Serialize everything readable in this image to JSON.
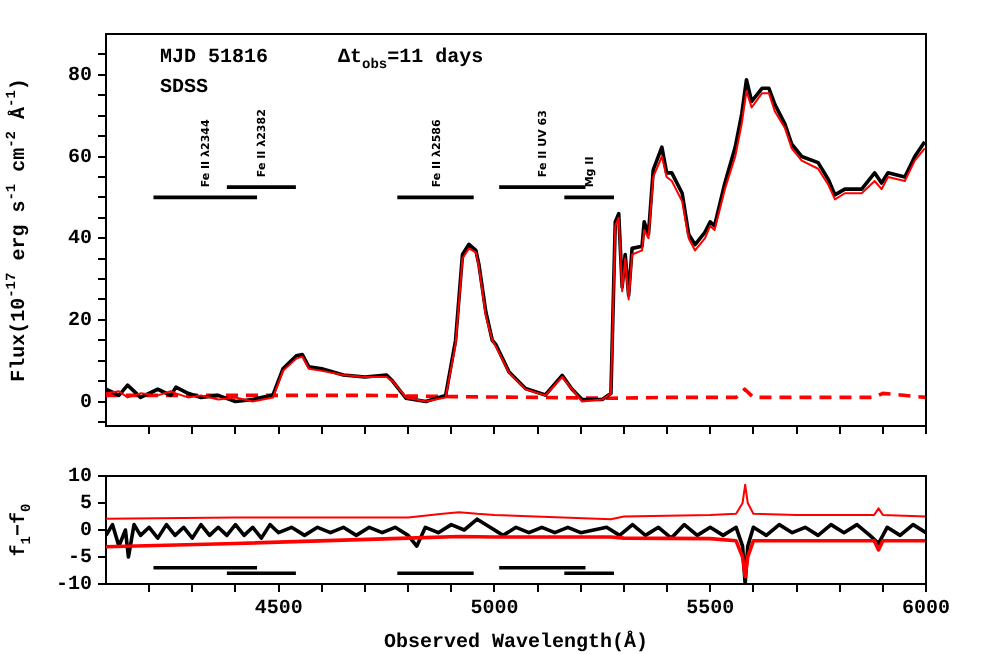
{
  "chart_data": [
    {
      "type": "line",
      "ylabel": "Flux(10$^{-17}$ erg s$^{-1}$ cm$^{-2}$ Å$^{-1}$)",
      "xlim": [
        4100,
        6000
      ],
      "xticks": [
        {
          "value": 4200,
          "label": null
        },
        {
          "value": 4300,
          "label": null
        },
        {
          "value": 4400,
          "label": null
        },
        4500,
        {
          "value": 4600,
          "label": null
        },
        {
          "value": 4700,
          "label": null
        },
        {
          "value": 4800,
          "label": null
        },
        {
          "value": 4900,
          "label": null
        },
        5000,
        {
          "value": 5100,
          "label": null
        },
        {
          "value": 5200,
          "label": null
        },
        {
          "value": 5300,
          "label": null
        },
        {
          "value": 5400,
          "label": null
        },
        5500,
        {
          "value": 5600,
          "label": null
        },
        {
          "value": 5700,
          "label": null
        },
        {
          "value": 5800,
          "label": null
        },
        {
          "value": 5900,
          "label": null
        },
        6000
      ],
      "ylim": [
        -6,
        90
      ],
      "yticks": [
        {
          "value": -5,
          "label": null
        },
        0,
        {
          "value": 5,
          "label": null
        },
        {
          "value": 10,
          "label": null
        },
        {
          "value": 15,
          "label": null
        },
        20,
        {
          "value": 25,
          "label": null
        },
        {
          "value": 30,
          "label": null
        },
        {
          "value": 35,
          "label": null
        },
        40,
        {
          "value": 45,
          "label": null
        },
        {
          "value": 50,
          "label": null
        },
        {
          "value": 55,
          "label": null
        },
        60,
        {
          "value": 65,
          "label": null
        },
        {
          "value": 70,
          "label": null
        },
        {
          "value": 75,
          "label": null
        },
        80,
        {
          "value": 85,
          "label": null
        }
      ],
      "tick_labels": "y",
      "grid": false,
      "legend": false,
      "marker": "none",
      "annotations": [
        "MJD 51816",
        "Δt$_{obs}$=11 days",
        "SDSS",
        "Fe II λ2344",
        "Fe II λ2382",
        "Fe II λ2586",
        "Fe II UV 63",
        "Mg II"
      ],
      "series": [
        {
          "color": "#ff0000",
          "x": [
            4100,
            4130,
            4150,
            4180,
            4220,
            4250,
            4262,
            4290,
            4320,
            4360,
            4400,
            4440,
            4487,
            4510,
            4541,
            4555,
            4570,
            4600,
            4650,
            4700,
            4750,
            4764,
            4795,
            4841,
            4887,
            4910,
            4926,
            4941,
            4957,
            4964,
            4980,
            4995,
            5003,
            5034,
            5072,
            5118,
            5157,
            5180,
            5203,
            5250,
            5270,
            5280,
            5288,
            5296,
            5303,
            5311,
            5319,
            5342,
            5347,
            5357,
            5368,
            5388,
            5399,
            5411,
            5435,
            5450,
            5465,
            5488,
            5500,
            5510,
            5534,
            5558,
            5573,
            5584,
            5596,
            5620,
            5636,
            5650,
            5673,
            5689,
            5712,
            5750,
            5774,
            5789,
            5812,
            5851,
            5881,
            5897,
            5912,
            5951,
            5974,
            5997
          ],
          "values": [
            2,
            2.5,
            1,
            2,
            1.5,
            2.5,
            2,
            1,
            1.5,
            0.5,
            1,
            0,
            1,
            7.5,
            10.5,
            11,
            8,
            7.5,
            6.5,
            6,
            6,
            5,
            1,
            0,
            1,
            14,
            35,
            37.5,
            36.5,
            33,
            21,
            15,
            13.5,
            7,
            3,
            1.5,
            6,
            3,
            0,
            0.5,
            2,
            43,
            45,
            27,
            35,
            25,
            36,
            37,
            42,
            40,
            55,
            60,
            55,
            54,
            49,
            40,
            37,
            40,
            43,
            42,
            52,
            60,
            68,
            76,
            72,
            75.5,
            75.5,
            71,
            67,
            62,
            59,
            57,
            53,
            49.5,
            51,
            51,
            54,
            52,
            55,
            54,
            59,
            62
          ]
        },
        {
          "color": "#000000",
          "x": [
            4100,
            4130,
            4150,
            4180,
            4220,
            4250,
            4262,
            4290,
            4320,
            4360,
            4400,
            4440,
            4487,
            4510,
            4541,
            4555,
            4570,
            4600,
            4650,
            4700,
            4750,
            4764,
            4795,
            4841,
            4887,
            4910,
            4926,
            4941,
            4957,
            4964,
            4980,
            4995,
            5003,
            5034,
            5072,
            5118,
            5157,
            5180,
            5203,
            5250,
            5270,
            5280,
            5288,
            5296,
            5303,
            5311,
            5319,
            5342,
            5347,
            5357,
            5368,
            5388,
            5399,
            5411,
            5435,
            5450,
            5465,
            5488,
            5500,
            5510,
            5534,
            5558,
            5573,
            5584,
            5596,
            5620,
            5636,
            5650,
            5673,
            5689,
            5712,
            5750,
            5774,
            5789,
            5812,
            5851,
            5881,
            5897,
            5912,
            5951,
            5974,
            5997
          ],
          "values": [
            3,
            1.5,
            4,
            1,
            3,
            1.5,
            3.5,
            2,
            1,
            1.5,
            0,
            0.5,
            1.6,
            8,
            11.2,
            11.5,
            8.5,
            8,
            6.5,
            6,
            6.5,
            5,
            0.8,
            0,
            1.5,
            15,
            36,
            38.5,
            37,
            33.6,
            22,
            15,
            14,
            7.2,
            3.2,
            1.6,
            6.4,
            3,
            0.5,
            0.5,
            2,
            44,
            46,
            28,
            36,
            26,
            37.5,
            38,
            44,
            41,
            56.7,
            62.3,
            56,
            56,
            51,
            41,
            38.4,
            41.5,
            44,
            43,
            53.5,
            62.3,
            70.4,
            78.8,
            73.5,
            76.7,
            76.7,
            72.7,
            68,
            63,
            60,
            58.5,
            54.3,
            50.6,
            52,
            52,
            56,
            53.5,
            56,
            55,
            60,
            63.6
          ]
        },
        {
          "color": "#ff0000",
          "line_style": "dashed",
          "x": [
            4100,
            4300,
            4500,
            4700,
            4900,
            5100,
            5270,
            5400,
            5560,
            5580,
            5600,
            5800,
            5880,
            5900,
            6000
          ],
          "values": [
            1.5,
            1.5,
            1.5,
            1.5,
            1.2,
            1,
            0.8,
            1,
            1,
            3,
            1,
            1,
            1,
            2,
            1
          ]
        },
        {
          "color": "#000000",
          "x": [
            4210,
            4450
          ],
          "values": [
            50,
            50
          ]
        },
        {
          "color": "#000000",
          "x": [
            4380,
            4540
          ],
          "values": [
            52.5,
            52.5
          ]
        },
        {
          "color": "#000000",
          "x": [
            4775,
            4952
          ],
          "values": [
            50,
            50
          ]
        },
        {
          "color": "#000000",
          "x": [
            5011,
            5211
          ],
          "values": [
            52.5,
            52.5
          ]
        },
        {
          "color": "#000000",
          "x": [
            5162,
            5277
          ],
          "values": [
            50,
            50
          ]
        }
      ]
    },
    {
      "type": "line",
      "xlabel": "Observed Wavelength(Å)",
      "ylabel": "f$_{1}$−f$_{0}$",
      "xlim": [
        4100,
        6000
      ],
      "xticks": [
        {
          "value": 4200,
          "label": null
        },
        {
          "value": 4300,
          "label": null
        },
        {
          "value": 4400,
          "label": null
        },
        4500,
        {
          "value": 4600,
          "label": null
        },
        {
          "value": 4700,
          "label": null
        },
        {
          "value": 4800,
          "label": null
        },
        {
          "value": 4900,
          "label": null
        },
        5000,
        {
          "value": 5100,
          "label": null
        },
        {
          "value": 5200,
          "label": null
        },
        {
          "value": 5300,
          "label": null
        },
        {
          "value": 5400,
          "label": null
        },
        5500,
        {
          "value": 5600,
          "label": null
        },
        {
          "value": 5700,
          "label": null
        },
        {
          "value": 5800,
          "label": null
        },
        {
          "value": 5900,
          "label": null
        },
        6000
      ],
      "ylim": [
        -10,
        10
      ],
      "yticks": [
        -10,
        -5,
        0,
        5,
        10
      ],
      "grid": false,
      "legend": false,
      "marker": "none",
      "series": [
        {
          "color": "#ff0000",
          "x": [
            4100,
            4400,
            4800,
            4880,
            4918,
            4960,
            5000,
            5270,
            5300,
            5500,
            5560,
            5575,
            5581,
            5587,
            5600,
            5700,
            5880,
            5890,
            5900,
            6000
          ],
          "values": [
            2.1,
            2.3,
            2.3,
            3,
            3.3,
            3,
            2.8,
            2,
            2.5,
            2.8,
            3,
            5,
            8.4,
            5,
            3,
            2.8,
            2.8,
            4,
            2.8,
            2.5
          ]
        },
        {
          "color": "#ff0000",
          "x": [
            4100,
            4400,
            4800,
            4918,
            5000,
            5270,
            5300,
            5500,
            5560,
            5575,
            5581,
            5587,
            5600,
            5880,
            5890,
            5900,
            6000
          ],
          "values": [
            -3.1,
            -2.5,
            -1.5,
            -1.2,
            -1.3,
            -1.3,
            -1.5,
            -1.6,
            -2,
            -5,
            -8.6,
            -5,
            -2,
            -2,
            -3.7,
            -2,
            -2
          ]
        },
        {
          "color": "#000000",
          "x": [
            4100,
            4115,
            4130,
            4145,
            4152,
            4165,
            4180,
            4200,
            4220,
            4240,
            4260,
            4280,
            4300,
            4320,
            4340,
            4360,
            4380,
            4400,
            4420,
            4440,
            4460,
            4480,
            4500,
            4530,
            4560,
            4590,
            4620,
            4650,
            4680,
            4710,
            4740,
            4770,
            4800,
            4820,
            4840,
            4870,
            4900,
            4930,
            4960,
            4990,
            5020,
            5050,
            5080,
            5110,
            5140,
            5170,
            5200,
            5230,
            5260,
            5290,
            5320,
            5350,
            5380,
            5410,
            5440,
            5470,
            5500,
            5530,
            5560,
            5575,
            5581,
            5587,
            5600,
            5630,
            5660,
            5690,
            5720,
            5750,
            5780,
            5810,
            5840,
            5870,
            5890,
            5910,
            5940,
            5970,
            6000
          ],
          "values": [
            -1,
            1,
            -3,
            0,
            -5,
            1,
            -1,
            0.5,
            -1.5,
            1,
            -1,
            0.5,
            -1.5,
            1,
            -1,
            0.5,
            -1,
            1,
            -1,
            0.5,
            -1.5,
            1,
            -0.5,
            0.5,
            -1,
            0.5,
            -0.5,
            0.5,
            -1,
            0.5,
            -0.5,
            0.5,
            -1,
            -3,
            0.5,
            -0.5,
            1,
            0,
            2,
            0.5,
            -1,
            0.5,
            -0.5,
            0.5,
            -0.5,
            0.5,
            -0.5,
            0,
            0.5,
            -1,
            1,
            -1,
            0.5,
            -1.5,
            1,
            -1,
            0.5,
            -1,
            0.5,
            -3,
            -10,
            -3,
            0.5,
            -1,
            1,
            -0.5,
            0.5,
            -1,
            1,
            -0.5,
            1,
            -1,
            -2.5,
            0.5,
            -1,
            1,
            -0.5
          ]
        },
        {
          "color": "#000000",
          "x": [
            4210,
            4450
          ],
          "values": [
            -7,
            -7
          ]
        },
        {
          "color": "#000000",
          "x": [
            4380,
            4540
          ],
          "values": [
            -8,
            -8
          ]
        },
        {
          "color": "#000000",
          "x": [
            4775,
            4952
          ],
          "values": [
            -8,
            -8
          ]
        },
        {
          "color": "#000000",
          "x": [
            5011,
            5211
          ],
          "values": [
            -7,
            -7
          ]
        },
        {
          "color": "#000000",
          "x": [
            5162,
            5277
          ],
          "values": [
            -8,
            -8
          ]
        }
      ]
    }
  ]
}
